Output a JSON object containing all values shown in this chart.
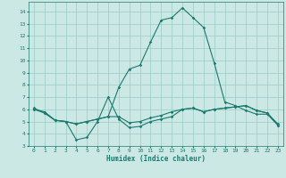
{
  "title": "",
  "xlabel": "Humidex (Indice chaleur)",
  "background_color": "#cce8e5",
  "grid_color": "#99ccc8",
  "line_color": "#1a7a6e",
  "xlim": [
    -0.5,
    23.5
  ],
  "ylim": [
    3,
    14.8
  ],
  "yticks": [
    3,
    4,
    5,
    6,
    7,
    8,
    9,
    10,
    11,
    12,
    13,
    14
  ],
  "x": [
    0,
    1,
    2,
    3,
    4,
    5,
    6,
    7,
    8,
    9,
    10,
    11,
    12,
    13,
    14,
    15,
    16,
    17,
    18,
    19,
    20,
    21,
    22,
    23
  ],
  "line1": [
    6.0,
    5.8,
    5.1,
    5.0,
    3.5,
    3.7,
    5.0,
    7.0,
    5.2,
    4.5,
    4.6,
    5.0,
    5.2,
    5.4,
    6.0,
    6.1,
    5.8,
    6.0,
    6.1,
    6.2,
    6.3,
    5.9,
    5.7,
    4.8
  ],
  "line2": [
    6.1,
    5.7,
    5.1,
    5.0,
    4.8,
    5.0,
    5.2,
    5.4,
    7.8,
    9.3,
    9.6,
    11.5,
    13.3,
    13.5,
    14.3,
    13.5,
    12.7,
    9.8,
    6.6,
    6.3,
    5.9,
    5.6,
    5.6,
    4.7
  ],
  "line3": [
    6.0,
    5.7,
    5.1,
    5.0,
    4.8,
    5.0,
    5.2,
    5.4,
    5.4,
    4.9,
    5.0,
    5.3,
    5.5,
    5.8,
    6.0,
    6.1,
    5.8,
    6.0,
    6.1,
    6.2,
    6.3,
    5.9,
    5.7,
    4.7
  ]
}
